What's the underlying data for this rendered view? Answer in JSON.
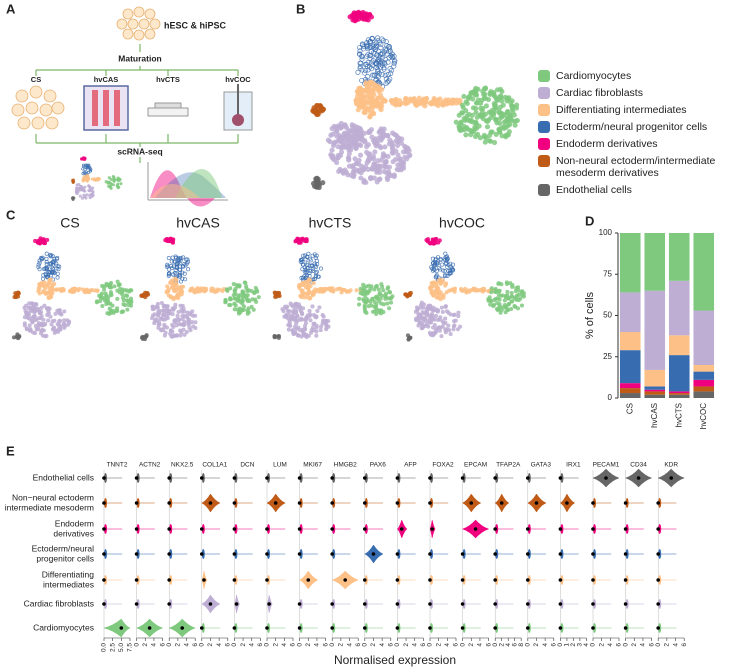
{
  "panel_labels": [
    "A",
    "B",
    "C",
    "D",
    "E"
  ],
  "panel_a": {
    "source": "hESC & hiPSC",
    "step1": "Maturation",
    "models": [
      "CS",
      "hvCAS",
      "hvCTS",
      "hvCOC"
    ],
    "step2": "scRNA-seq"
  },
  "panel_c": {
    "titles": [
      "CS",
      "hvCAS",
      "hvCTS",
      "hvCOC"
    ]
  },
  "chart_data": {
    "type": "bar",
    "stacked": true,
    "categories": [
      "CS",
      "hvCAS",
      "hvCTS",
      "hvCOC"
    ],
    "ylabel": "% of cells",
    "ylim": [
      0,
      100
    ],
    "yticks": [
      0,
      25,
      50,
      75,
      100
    ],
    "series": [
      {
        "name": "Endothelial cells",
        "color": "#666666",
        "values": [
          3,
          2,
          2,
          4
        ]
      },
      {
        "name": "Non-neural ectoderm/intermediate mesoderm derivatives",
        "color": "#bf5b17",
        "values": [
          3,
          2,
          1,
          3
        ]
      },
      {
        "name": "Endoderm derivatives",
        "color": "#f0027f",
        "values": [
          3,
          1,
          1,
          4
        ]
      },
      {
        "name": "Ectoderm/neural progenitor cells",
        "color": "#386cb0",
        "values": [
          20,
          2,
          22,
          5
        ]
      },
      {
        "name": "Differentiating intermediates",
        "color": "#fdc086",
        "values": [
          11,
          10,
          12,
          4
        ]
      },
      {
        "name": "Cardiac fibroblasts",
        "color": "#beaed4",
        "values": [
          24,
          48,
          33,
          33
        ]
      },
      {
        "name": "Cardiomyocytes",
        "color": "#7fc97f",
        "values": [
          36,
          35,
          29,
          47
        ]
      }
    ]
  },
  "panel_e": {
    "type": "violin",
    "xlabel": "Normalised expression",
    "cell_types": [
      [
        "Endothelial cells"
      ],
      [
        "Non−neural ectoderm",
        "intermediate mesoderm"
      ],
      [
        "Endoderm",
        "derivatives"
      ],
      [
        "Ectoderm/neural",
        "progenitor cells"
      ],
      [
        "Differentiating",
        "intermediates"
      ],
      [
        "Cardiac fibroblasts"
      ],
      [
        "Cardiomyocytes"
      ]
    ],
    "genes": [
      {
        "name": "TNNT2",
        "xticks": [
          {
            "value": 0,
            "label": "0.0"
          },
          {
            "value": 2.5,
            "label": "2.5"
          },
          {
            "value": 5,
            "label": "5.0"
          },
          {
            "value": 7.5,
            "label": "7.5"
          }
        ]
      },
      {
        "name": "ACTN2",
        "xticks": [
          0,
          2,
          4,
          6
        ]
      },
      {
        "name": "NKX2.5",
        "xticks": [
          0,
          2,
          4,
          6
        ]
      },
      {
        "name": "COL1A1",
        "xticks": [
          0,
          2,
          4,
          6
        ]
      },
      {
        "name": "DCN",
        "xticks": [
          0,
          2,
          4,
          6
        ]
      },
      {
        "name": "LUM",
        "xticks": [
          0,
          2,
          4,
          6
        ]
      },
      {
        "name": "MKI67",
        "xticks": [
          0,
          2,
          4,
          6
        ]
      },
      {
        "name": "HMGB2",
        "xticks": [
          0,
          2,
          4,
          6
        ]
      },
      {
        "name": "PAX6",
        "xticks": [
          0,
          2,
          4,
          6
        ]
      },
      {
        "name": "AFP",
        "xticks": [
          0,
          2,
          4,
          6
        ]
      },
      {
        "name": "FOXA2",
        "xticks": [
          0,
          2,
          4,
          6
        ]
      },
      {
        "name": "EPCAM",
        "xticks": [
          0,
          2,
          4,
          6
        ]
      },
      {
        "name": "TFAP2A",
        "xticks": [
          0,
          2,
          4,
          6,
          8
        ]
      },
      {
        "name": "GATA3",
        "xticks": [
          0,
          2,
          4,
          6
        ]
      },
      {
        "name": "IRX1",
        "xticks": [
          0,
          1,
          2,
          3,
          4
        ]
      },
      {
        "name": "PECAM1",
        "xticks": [
          0,
          2,
          4,
          6
        ]
      },
      {
        "name": "CD34",
        "xticks": [
          0,
          2,
          4,
          6
        ]
      },
      {
        "name": "KDR",
        "xticks": [
          0,
          2,
          4,
          6
        ]
      }
    ],
    "medians": [
      [
        0,
        0,
        0,
        0,
        0,
        0,
        0,
        0,
        0,
        0,
        0,
        0,
        0,
        0,
        0,
        3,
        3,
        3
      ],
      [
        0,
        0,
        0,
        2,
        0,
        2,
        0,
        0,
        0,
        0,
        0,
        2,
        2,
        2,
        1,
        0,
        0,
        0
      ],
      [
        0,
        0,
        0,
        0,
        0,
        0,
        0,
        0,
        0,
        1,
        0.5,
        3,
        0,
        0,
        0,
        0,
        0,
        0
      ],
      [
        0,
        0,
        0,
        0,
        0,
        0,
        0,
        0,
        2,
        0,
        0,
        0,
        0,
        0,
        0,
        0,
        0,
        0
      ],
      [
        0,
        0,
        0,
        0.5,
        0,
        0,
        2,
        3,
        0,
        0,
        0,
        0,
        0,
        0,
        0,
        0,
        0,
        0
      ],
      [
        0,
        0,
        0,
        2,
        0.5,
        0.5,
        0,
        0,
        0,
        0,
        0,
        0,
        0,
        0,
        0,
        0,
        0,
        0
      ],
      [
        5,
        3,
        3,
        0,
        0,
        0,
        0,
        0,
        0,
        0,
        0,
        0,
        0,
        0,
        0,
        0,
        0,
        0
      ]
    ]
  }
}
